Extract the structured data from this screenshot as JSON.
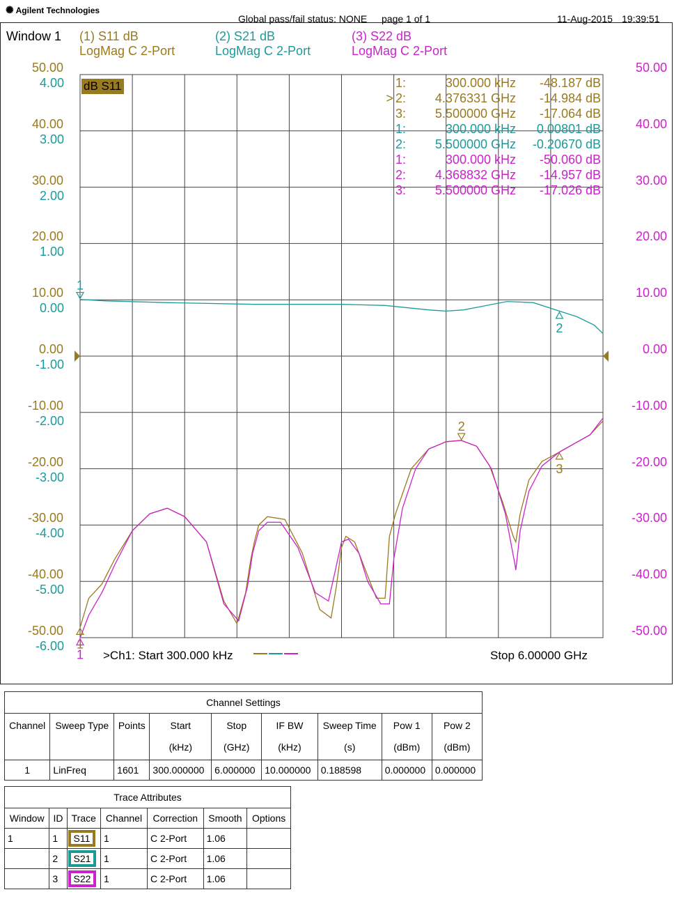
{
  "header": {
    "brand": "Agilent Technologies",
    "status": "Global pass/fail status: NONE",
    "page": "page  1 of  1",
    "date": "11-Aug-2015",
    "time": "19:39:51"
  },
  "colors": {
    "s11": "#9a7a1e",
    "s21": "#1c9a9a",
    "s22": "#cc22cc",
    "grid": "#444444"
  },
  "window_label": "Window 1",
  "traces": [
    {
      "title": "(1) S11 dB",
      "format": "LogMag C  2-Port"
    },
    {
      "title": "(2) S21 dB",
      "format": "LogMag C  2-Port"
    },
    {
      "title": "(3) S22 dB",
      "format": "LogMag C  2-Port"
    }
  ],
  "active_trace_badge": "dB S11",
  "markers_table": [
    {
      "n": "1:",
      "pointer": "",
      "freq": "300.000 kHz",
      "val": "-48.187 dB",
      "color": "#9a7a1e"
    },
    {
      "n": "2:",
      "pointer": ">",
      "freq": "4.376331 GHz",
      "val": "-14.984 dB",
      "color": "#9a7a1e"
    },
    {
      "n": "3:",
      "pointer": "",
      "freq": "5.500000 GHz",
      "val": "-17.064 dB",
      "color": "#9a7a1e"
    },
    {
      "n": "1:",
      "pointer": "",
      "freq": "300.000 kHz",
      "val": "0.00801 dB",
      "color": "#1c9a9a"
    },
    {
      "n": "2:",
      "pointer": "",
      "freq": "5.500000 GHz",
      "val": "-0.20670 dB",
      "color": "#1c9a9a"
    },
    {
      "n": "1:",
      "pointer": "",
      "freq": "300.000 kHz",
      "val": "-50.060 dB",
      "color": "#cc22cc"
    },
    {
      "n": "2:",
      "pointer": "",
      "freq": "4.368832 GHz",
      "val": "-14.957 dB",
      "color": "#cc22cc"
    },
    {
      "n": "3:",
      "pointer": "",
      "freq": "5.500000 GHz",
      "val": "-17.026 dB",
      "color": "#cc22cc"
    }
  ],
  "footer": {
    "start": ">Ch1: Start  300.000 kHz",
    "stop": "Stop  6.00000 GHz"
  },
  "chart_data": {
    "type": "line",
    "x_range_ghz": [
      0.0003,
      6.0
    ],
    "grid": true,
    "divisions_x": 10,
    "divisions_y": 10,
    "axis_left_outer": {
      "color": "#9a7a1e",
      "ticks": [
        "50.00",
        "40.00",
        "30.00",
        "20.00",
        "10.00",
        "0.00",
        "-10.00",
        "-20.00",
        "-30.00",
        "-40.00",
        "-50.00"
      ]
    },
    "axis_left_inner": {
      "color": "#1c9a9a",
      "ticks": [
        "4.00",
        "3.00",
        "2.00",
        "1.00",
        "0.00",
        "-1.00",
        "-2.00",
        "-3.00",
        "-4.00",
        "-5.00",
        "-6.00"
      ]
    },
    "axis_right": {
      "color": "#cc22cc",
      "ticks": [
        "50.00",
        "40.00",
        "30.00",
        "20.00",
        "10.00",
        "0.00",
        "-10.00",
        "-20.00",
        "-30.00",
        "-40.00",
        "-50.00"
      ]
    },
    "series": [
      {
        "id": "s11",
        "ylim": [
          -50,
          50
        ],
        "x": [
          0.0003,
          0.1,
          0.25,
          0.4,
          0.6,
          0.8,
          1.0,
          1.2,
          1.45,
          1.65,
          1.8,
          1.9,
          1.96,
          2.0,
          2.05,
          2.15,
          2.35,
          2.55,
          2.75,
          2.88,
          2.94,
          3.0,
          3.05,
          3.15,
          3.3,
          3.4,
          3.5,
          3.55,
          3.62,
          3.8,
          4.0,
          4.2,
          4.376,
          4.55,
          4.7,
          4.85,
          4.97,
          5.0,
          5.05,
          5.15,
          5.3,
          5.5,
          5.7,
          5.85,
          6.0
        ],
        "y": [
          -48.19,
          -43,
          -40.5,
          -36,
          -31,
          -28,
          -27,
          -28.5,
          -33,
          -43.5,
          -47.5,
          -42,
          -36,
          -33,
          -30,
          -28.5,
          -29,
          -35,
          -45,
          -46.5,
          -41,
          -34,
          -32,
          -33,
          -39,
          -43,
          -43,
          -32,
          -28,
          -20,
          -16.5,
          -15.2,
          -14.98,
          -16,
          -19.5,
          -26,
          -32,
          -33,
          -28,
          -22,
          -18.7,
          -17.06,
          -15.3,
          -14,
          -11.5
        ]
      },
      {
        "id": "s21",
        "ylim": [
          -6,
          4
        ],
        "x": [
          0.0003,
          0.3,
          1.0,
          2.0,
          3.0,
          3.5,
          4.0,
          4.2,
          4.4,
          4.6,
          4.9,
          5.2,
          5.5,
          5.7,
          5.9,
          6.0
        ],
        "y": [
          0.008,
          -0.02,
          -0.05,
          -0.08,
          -0.08,
          -0.1,
          -0.18,
          -0.2,
          -0.18,
          -0.12,
          -0.03,
          -0.05,
          -0.2,
          -0.3,
          -0.45,
          -0.6
        ]
      },
      {
        "id": "s22",
        "ylim": [
          -50,
          50
        ],
        "x": [
          0.0003,
          0.1,
          0.25,
          0.4,
          0.6,
          0.8,
          1.0,
          1.2,
          1.45,
          1.65,
          1.82,
          1.92,
          1.98,
          2.05,
          2.15,
          2.3,
          2.5,
          2.7,
          2.85,
          2.93,
          3.0,
          3.08,
          3.2,
          3.3,
          3.45,
          3.55,
          3.6,
          3.7,
          3.85,
          4.0,
          4.2,
          4.369,
          4.55,
          4.72,
          4.88,
          4.99,
          5.0,
          5.05,
          5.15,
          5.3,
          5.5,
          5.7,
          5.85,
          6.0
        ],
        "y": [
          -50.06,
          -46,
          -42,
          -37,
          -31,
          -28,
          -27,
          -28.5,
          -33,
          -44,
          -47,
          -41,
          -35,
          -31,
          -29.5,
          -29.5,
          -34,
          -42,
          -43.5,
          -38,
          -33,
          -32.5,
          -35,
          -40,
          -44,
          -44,
          -36,
          -27,
          -20,
          -16.5,
          -15.2,
          -14.96,
          -16,
          -20,
          -28,
          -37,
          -38,
          -31,
          -24,
          -19.5,
          -17.03,
          -15.3,
          -14,
          -11
        ]
      }
    ],
    "markers": [
      {
        "series": "s11",
        "label": "1",
        "x": 0.0003,
        "y": -48.19,
        "side": "below"
      },
      {
        "series": "s11",
        "label": "2",
        "x": 4.376,
        "y": -14.98,
        "side": "above"
      },
      {
        "series": "s11",
        "label": "3",
        "x": 5.5,
        "y": -17.06,
        "side": "below"
      },
      {
        "series": "s21",
        "label": "1",
        "x": 0.0003,
        "y": 0.008,
        "side": "above"
      },
      {
        "series": "s21",
        "label": "2",
        "x": 5.5,
        "y": -0.2067,
        "side": "below"
      },
      {
        "series": "s22",
        "label": "1",
        "x": 0.0003,
        "y": -50.06,
        "side": "below"
      }
    ]
  },
  "channel_settings": {
    "title": "Channel Settings",
    "headers": [
      [
        "Channel",
        ""
      ],
      [
        "Sweep Type",
        ""
      ],
      [
        "Points",
        ""
      ],
      [
        "Start",
        "(kHz)"
      ],
      [
        "Stop",
        "(GHz)"
      ],
      [
        "IF BW",
        "(kHz)"
      ],
      [
        "Sweep Time",
        "(s)"
      ],
      [
        "Pow 1",
        "(dBm)"
      ],
      [
        "Pow 2",
        "(dBm)"
      ]
    ],
    "row": [
      "1",
      "LinFreq",
      "1601",
      "300.000000",
      "6.000000",
      "10.000000",
      "0.188598",
      "0.000000",
      "0.000000"
    ]
  },
  "trace_attributes": {
    "title": "Trace Attributes",
    "headers": [
      "Window",
      "ID",
      "Trace",
      "Channel",
      "Correction",
      "Smooth",
      "Options"
    ],
    "rows": [
      {
        "window": "1",
        "id": "1",
        "trace": "S11",
        "channel": "1",
        "correction": "C 2-Port",
        "smooth": "1.06",
        "options": "",
        "color": "#9a7a1e"
      },
      {
        "window": "",
        "id": "2",
        "trace": "S21",
        "channel": "1",
        "correction": "C 2-Port",
        "smooth": "1.06",
        "options": "",
        "color": "#1c9a9a"
      },
      {
        "window": "",
        "id": "3",
        "trace": "S22",
        "channel": "1",
        "correction": "C 2-Port",
        "smooth": "1.06",
        "options": "",
        "color": "#cc22cc"
      }
    ]
  }
}
